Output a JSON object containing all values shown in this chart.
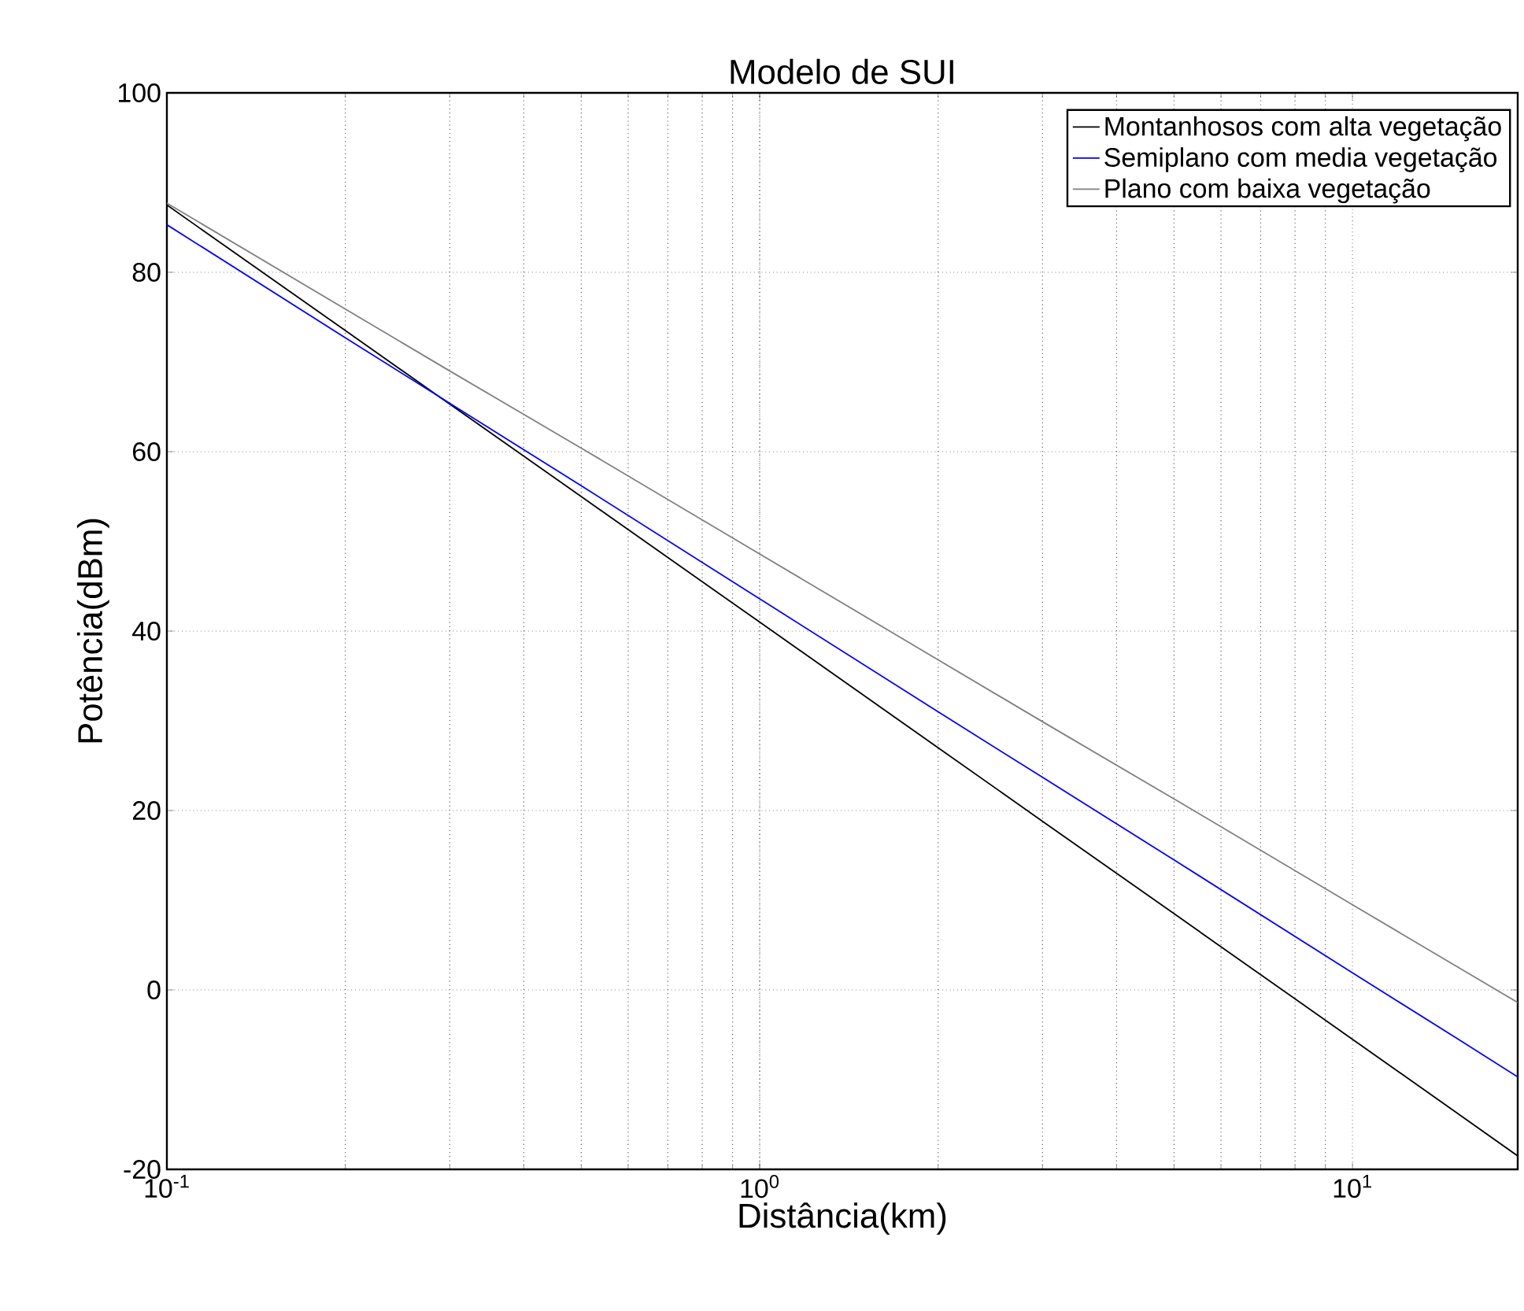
{
  "chart_data": {
    "type": "line",
    "title": "Modelo de SUI",
    "xlabel": "Distância(km)",
    "ylabel": "Potência(dBm)",
    "x": [
      0.1,
      0.2,
      0.3,
      0.5,
      1,
      2,
      3,
      5,
      10,
      15,
      19
    ],
    "series": [
      {
        "name": "Montanhosos com alta vegetação",
        "color": "#000000",
        "values": [
          87.5,
          73.5,
          65.3,
          55.0,
          41.0,
          27.0,
          18.8,
          8.5,
          -5.5,
          -13.7,
          -18.5
        ]
      },
      {
        "name": "Semiplano com media vegetação",
        "color": "#0000ff",
        "values": [
          85.3,
          72.7,
          65.4,
          56.2,
          43.6,
          31.0,
          23.7,
          14.5,
          1.9,
          -5.4,
          -9.7
        ]
      },
      {
        "name": "Plano com baixa vegetação",
        "color": "#808080",
        "values": [
          87.7,
          75.9,
          69.0,
          60.4,
          48.6,
          36.8,
          29.9,
          21.3,
          9.5,
          2.6,
          -1.4
        ]
      }
    ],
    "log": "x",
    "xlim": [
      0.1,
      19
    ],
    "ylim": [
      -20,
      100
    ],
    "xticks": [
      {
        "value": 0.1,
        "label": "10$^{-1}$"
      },
      {
        "value": 1,
        "label": "10$^{0}$"
      },
      {
        "value": 10,
        "label": "10$^{1}$"
      }
    ],
    "yticks": [
      -20,
      0,
      20,
      40,
      60,
      80,
      100
    ],
    "grid": true,
    "legend": "top right",
    "line_style": "solid",
    "marker": "none"
  }
}
